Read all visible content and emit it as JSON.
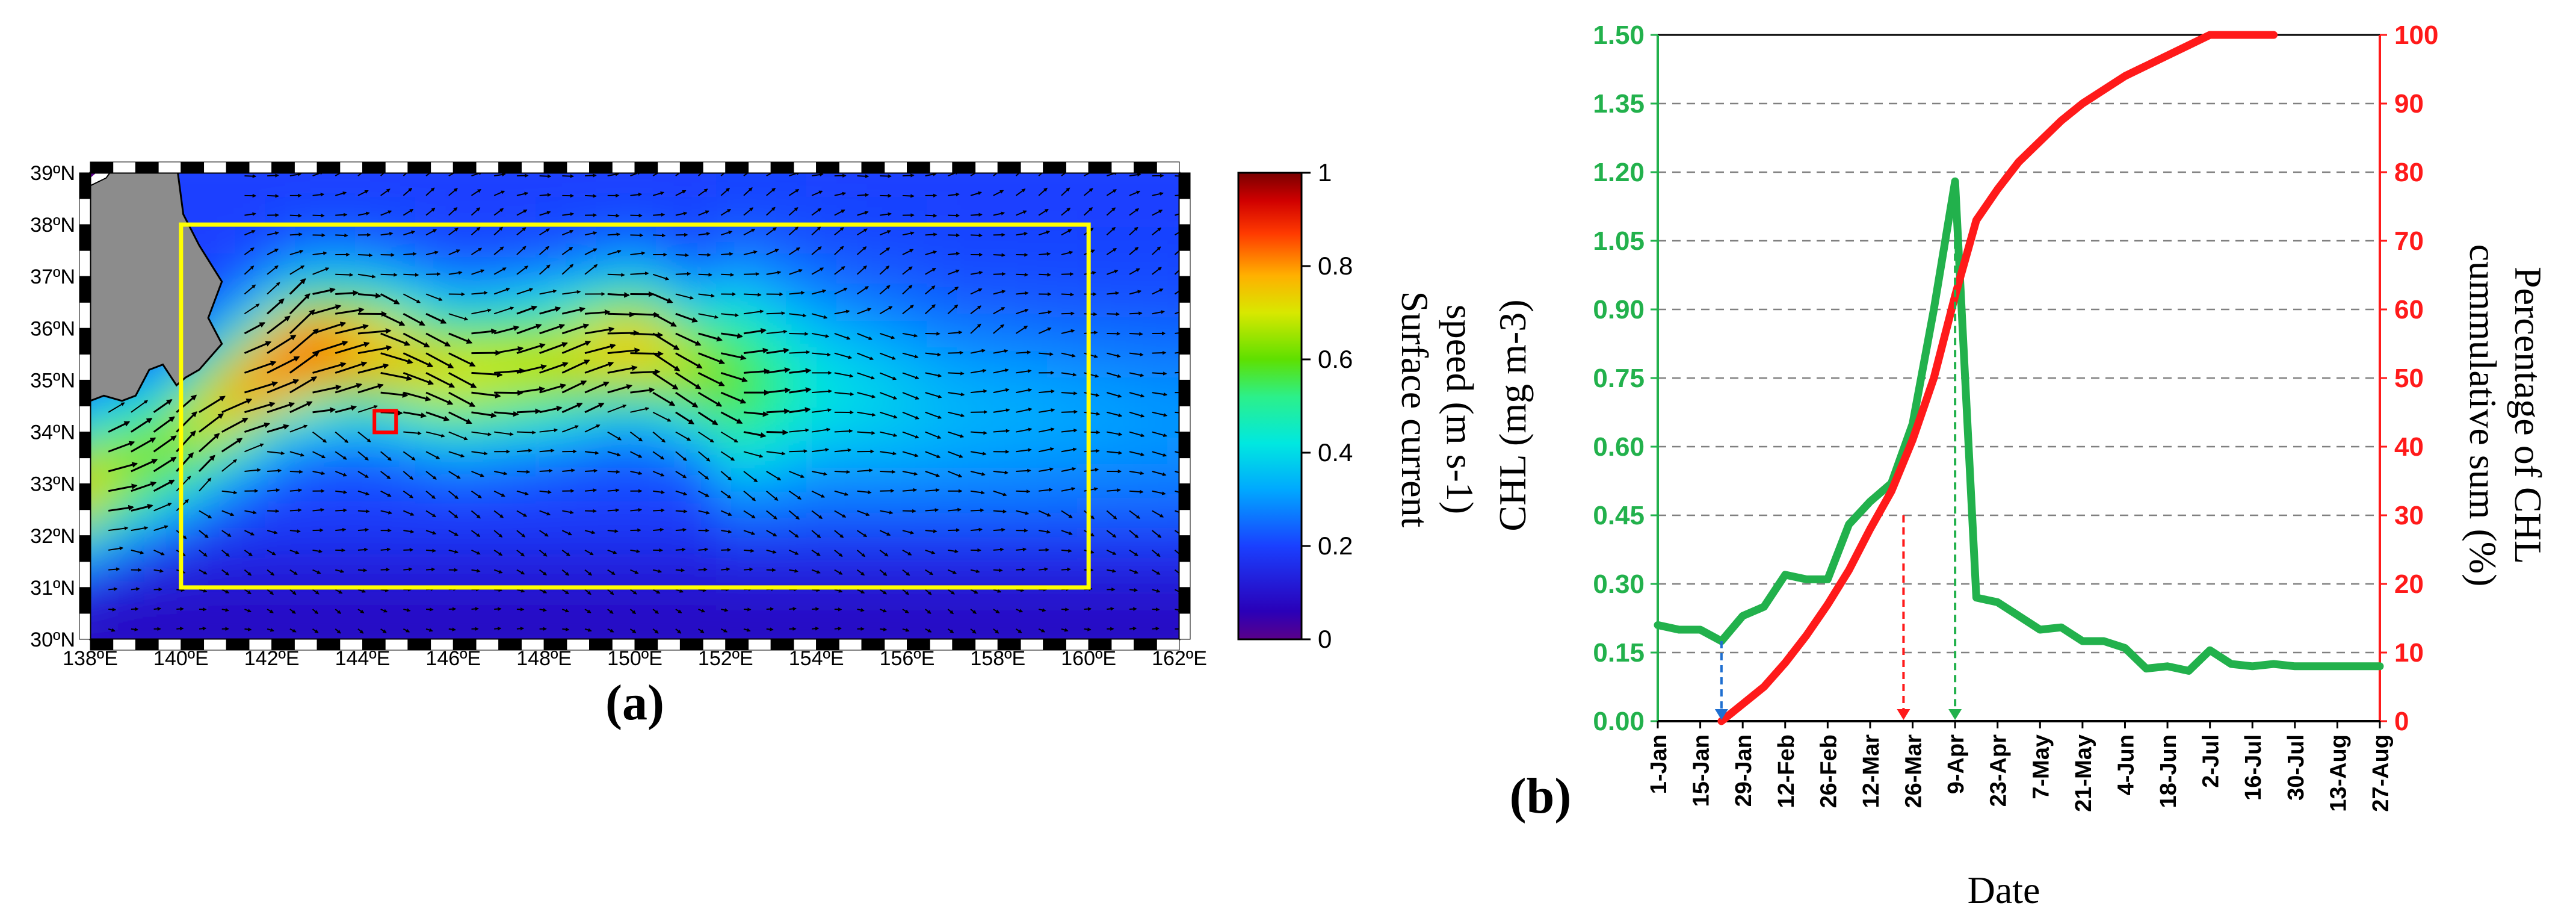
{
  "colors": {
    "green": "#22b14c",
    "red": "#ff1a1a",
    "grid": "#808080",
    "blue_marker": "#1f6fd0",
    "red_marker": "#ff1a1a",
    "green_marker": "#22b14c",
    "box": "#ffff00",
    "site_box": "#ff0000",
    "land": "#8c8c8c"
  },
  "chart_data": [
    {
      "type": "heatmap",
      "panel_label": "(a)",
      "title": "",
      "colorbar": {
        "label_line1": "Surface current",
        "label_line2": "speed (m s-1)",
        "range": [
          0,
          1
        ],
        "ticks": [
          "0",
          "0.2",
          "0.4",
          "0.6",
          "0.8",
          "1"
        ],
        "tick_values": [
          0,
          0.2,
          0.4,
          0.6,
          0.8,
          1.0
        ]
      },
      "x_ticks": [
        "138ºE",
        "140ºE",
        "142ºE",
        "144ºE",
        "146ºE",
        "148ºE",
        "150ºE",
        "152ºE",
        "154ºE",
        "156ºE",
        "158ºE",
        "160ºE",
        "162ºE"
      ],
      "x_tick_values": [
        138,
        140,
        142,
        144,
        146,
        148,
        150,
        152,
        154,
        156,
        158,
        160,
        162
      ],
      "y_ticks": [
        "30ºN",
        "31ºN",
        "32ºN",
        "33ºN",
        "34ºN",
        "35ºN",
        "36ºN",
        "37ºN",
        "38ºN",
        "39ºN"
      ],
      "y_tick_values": [
        30,
        31,
        32,
        33,
        34,
        35,
        36,
        37,
        38,
        39
      ],
      "xlim": [
        138,
        162
      ],
      "ylim": [
        30,
        39
      ],
      "study_box": {
        "lon": [
          140,
          160
        ],
        "lat": [
          31,
          38
        ]
      },
      "site": {
        "lon": 144.5,
        "lat": 34.2
      },
      "current_axis": [
        {
          "lon": 138.0,
          "lat": 33.0,
          "speed": 0.72
        },
        {
          "lon": 139.5,
          "lat": 33.6,
          "speed": 0.62
        },
        {
          "lon": 141.0,
          "lat": 34.6,
          "speed": 0.78
        },
        {
          "lon": 142.5,
          "lat": 35.5,
          "speed": 0.9
        },
        {
          "lon": 144.0,
          "lat": 35.6,
          "speed": 0.8
        },
        {
          "lon": 146.0,
          "lat": 35.1,
          "speed": 0.72
        },
        {
          "lon": 148.0,
          "lat": 35.3,
          "speed": 0.7
        },
        {
          "lon": 150.0,
          "lat": 35.7,
          "speed": 0.78
        },
        {
          "lon": 152.0,
          "lat": 35.0,
          "speed": 0.62
        },
        {
          "lon": 154.0,
          "lat": 34.8,
          "speed": 0.42
        },
        {
          "lon": 157.0,
          "lat": 34.4,
          "speed": 0.34
        },
        {
          "lon": 162.0,
          "lat": 34.2,
          "speed": 0.3
        }
      ]
    },
    {
      "type": "line",
      "panel_label": "(b)",
      "title": "",
      "xlabel": "Date",
      "ylabel_left": "CHL (mg m-3)",
      "ylabel_right_line1": "Percentage of CHL",
      "ylabel_right_line2": "cummulative sum (%)",
      "categories": [
        "1-Jan",
        "15-Jan",
        "29-Jan",
        "12-Feb",
        "26-Feb",
        "12-Mar",
        "26-Mar",
        "9-Apr",
        "23-Apr",
        "7-May",
        "21-May",
        "4-Jun",
        "18-Jun",
        "2-Jul",
        "16-Jul",
        "30-Jul",
        "13-Aug",
        "27-Aug"
      ],
      "ylim_left": [
        0,
        1.5
      ],
      "ylim_right": [
        0,
        100
      ],
      "y_ticks_left": [
        "0.00",
        "0.15",
        "0.30",
        "0.45",
        "0.60",
        "0.75",
        "0.90",
        "1.05",
        "1.20",
        "1.35",
        "1.50"
      ],
      "y_tick_values_left": [
        0,
        0.15,
        0.3,
        0.45,
        0.6,
        0.75,
        0.9,
        1.05,
        1.2,
        1.35,
        1.5
      ],
      "y_ticks_right": [
        "0",
        "10",
        "20",
        "30",
        "40",
        "50",
        "60",
        "70",
        "80",
        "90",
        "100"
      ],
      "y_tick_values_right": [
        0,
        10,
        20,
        30,
        40,
        50,
        60,
        70,
        80,
        90,
        100
      ],
      "grid": true,
      "series": [
        {
          "name": "CHL",
          "axis": "left",
          "color": "#22b14c",
          "x": [
            0,
            7,
            14,
            21,
            28,
            35,
            42,
            49,
            56,
            63,
            70,
            77,
            84,
            91,
            98,
            105,
            112,
            119,
            126,
            133,
            140,
            147,
            154,
            161,
            168,
            175,
            182,
            189,
            196,
            203,
            210,
            217,
            224,
            231,
            238
          ],
          "values": [
            0.21,
            0.2,
            0.2,
            0.175,
            0.23,
            0.25,
            0.32,
            0.31,
            0.31,
            0.43,
            0.48,
            0.52,
            0.65,
            0.9,
            1.18,
            0.27,
            0.26,
            0.23,
            0.2,
            0.205,
            0.175,
            0.175,
            0.16,
            0.115,
            0.12,
            0.11,
            0.155,
            0.125,
            0.12,
            0.125,
            0.12,
            0.12,
            0.12,
            0.12,
            0.12
          ]
        },
        {
          "name": "Percentage of CHL cummulative sum",
          "axis": "right",
          "color": "#ff1a1a",
          "x": [
            21,
            28,
            35,
            42,
            49,
            56,
            63,
            70,
            77,
            84,
            91,
            98,
            105,
            112,
            119,
            126,
            133,
            140,
            147,
            154,
            161,
            168,
            175,
            182,
            189,
            196,
            203
          ],
          "values": [
            0,
            2.5,
            5,
            8.5,
            12.5,
            17,
            22,
            28,
            33.5,
            41,
            50,
            62,
            73,
            77.5,
            81.5,
            84.5,
            87.5,
            90,
            92,
            94,
            95.5,
            97,
            98.5,
            100,
            100,
            100,
            100
          ]
        }
      ],
      "markers": [
        {
          "x": 21,
          "value": 0.175,
          "axis": "left",
          "color": "#1f6fd0"
        },
        {
          "x": 81,
          "value": 30,
          "axis": "right",
          "color": "#ff1a1a"
        },
        {
          "x": 98,
          "value": 1.18,
          "axis": "left",
          "color": "#22b14c"
        }
      ]
    }
  ]
}
